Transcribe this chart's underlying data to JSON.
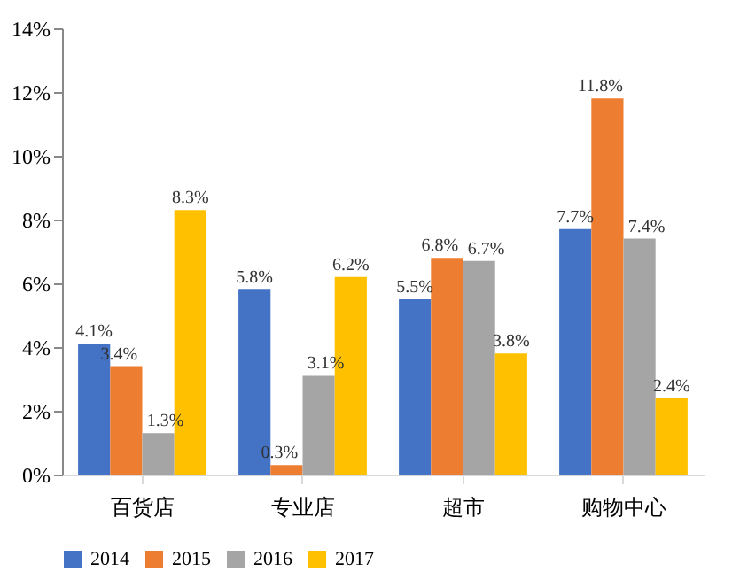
{
  "chart_data": {
    "type": "bar",
    "categories": [
      "百货店",
      "专业店",
      "超市",
      "购物中心"
    ],
    "series": [
      {
        "name": "2014",
        "color": "#4472c4",
        "values": [
          4.1,
          5.8,
          5.5,
          7.7
        ],
        "value_labels": [
          "4.1%",
          "5.8%",
          "5.5%",
          "7.7%"
        ]
      },
      {
        "name": "2015",
        "color": "#ed7d31",
        "values": [
          3.4,
          0.3,
          6.8,
          11.8
        ],
        "value_labels": [
          "3.4%",
          "0.3%",
          "6.8%",
          "11.8%"
        ]
      },
      {
        "name": "2016",
        "color": "#a5a5a5",
        "values": [
          1.3,
          3.1,
          6.7,
          7.4
        ],
        "value_labels": [
          "1.3%",
          "3.1%",
          "6.7%",
          "7.4%"
        ]
      },
      {
        "name": "2017",
        "color": "#ffc000",
        "values": [
          8.3,
          6.2,
          3.8,
          2.4
        ],
        "value_labels": [
          "8.3%",
          "6.2%",
          "3.8%",
          "2.4%"
        ]
      }
    ],
    "ylim": [
      0,
      14
    ],
    "yticks": [
      {
        "value": 0,
        "label": "0%"
      },
      {
        "value": 2,
        "label": "2%"
      },
      {
        "value": 4,
        "label": "4%"
      },
      {
        "value": 6,
        "label": "6%"
      },
      {
        "value": 8,
        "label": "8%"
      },
      {
        "value": 10,
        "label": "10%"
      },
      {
        "value": 12,
        "label": "12%"
      },
      {
        "value": 14,
        "label": "14%"
      }
    ],
    "grid": false,
    "legend": "bottom"
  }
}
